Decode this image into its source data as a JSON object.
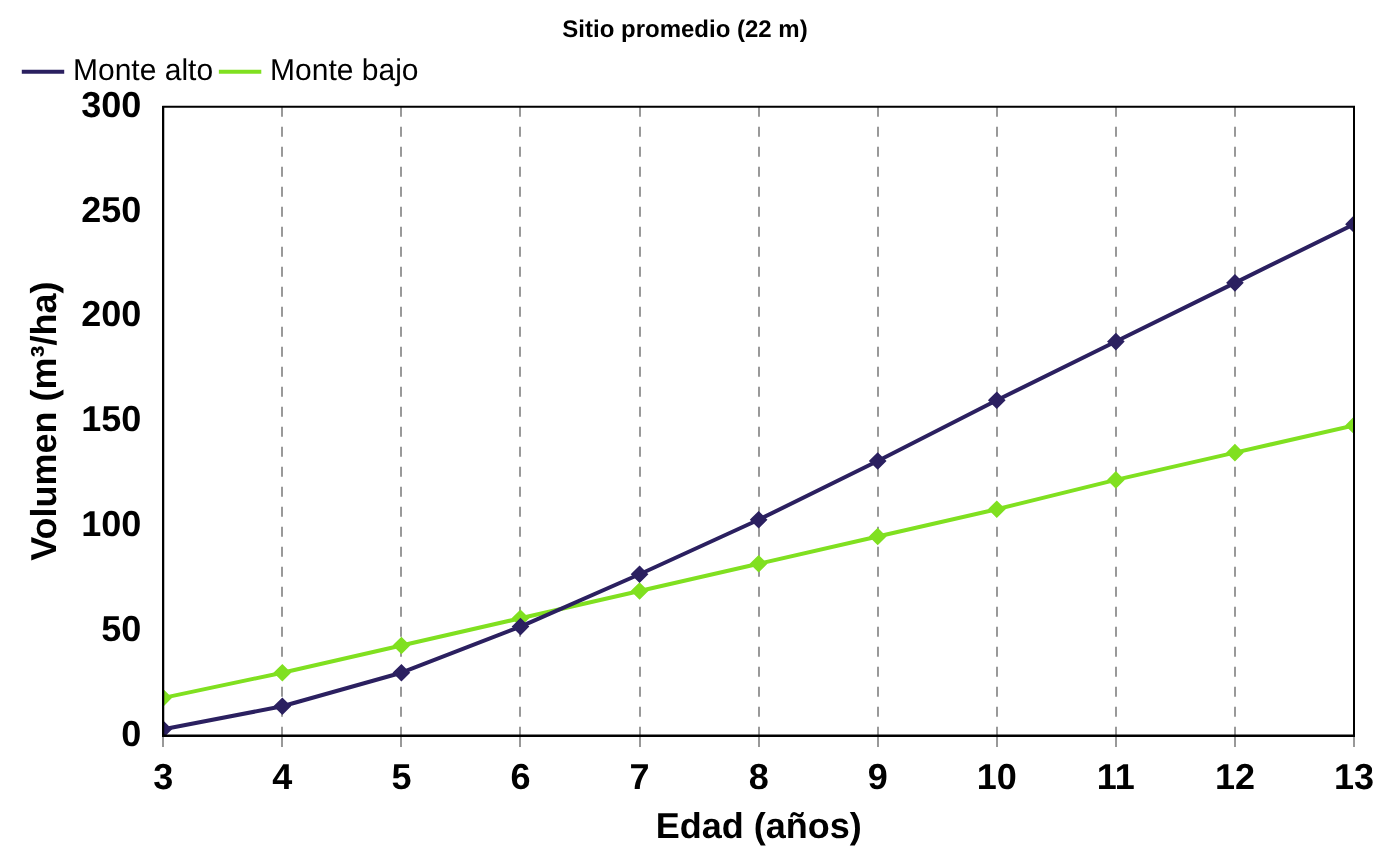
{
  "chart_data": {
    "type": "line",
    "title": "Sitio promedio (22 m)",
    "xlabel": "Edad (años)",
    "ylabel": "Volumen (m³/ha)",
    "x": [
      3,
      4,
      5,
      6,
      7,
      8,
      9,
      10,
      11,
      12,
      13
    ],
    "series": [
      {
        "name": "Monte alto",
        "color": "#2b2060",
        "values": [
          3,
          14,
          30,
          52,
          77,
          103,
          131,
          160,
          188,
          216,
          244
        ]
      },
      {
        "name": "Monte bajo",
        "color": "#80e020",
        "values": [
          18,
          30,
          43,
          56,
          69,
          82,
          95,
          108,
          122,
          135,
          148
        ]
      }
    ],
    "xlim": [
      3,
      13
    ],
    "xticks": [
      3,
      4,
      5,
      6,
      7,
      8,
      9,
      10,
      11,
      12,
      13
    ],
    "ylim": [
      0,
      300
    ],
    "yticks": [
      0,
      50,
      100,
      150,
      200,
      250,
      300
    ],
    "grid": "x",
    "legend": "top left",
    "marker": "diamond",
    "line_style": "solid"
  }
}
